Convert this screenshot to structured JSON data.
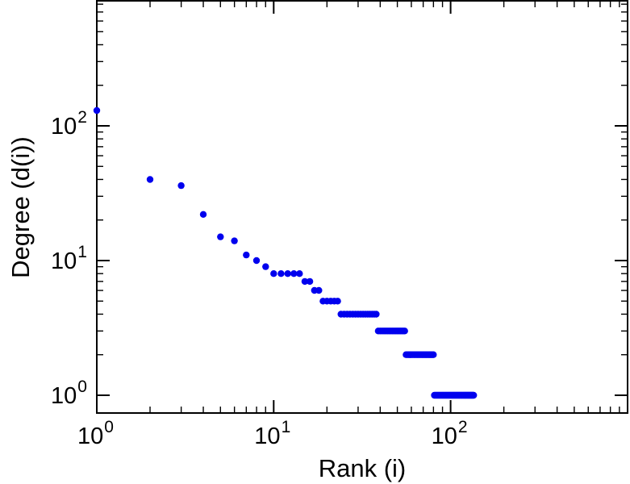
{
  "chart_data": {
    "type": "scatter",
    "title": "",
    "xlabel": "Rank (i)",
    "ylabel": "Degree (d(i))",
    "x_scale": "log",
    "y_scale": "log",
    "xlim": [
      1,
      1000
    ],
    "ylim": [
      1,
      850
    ],
    "grid": false,
    "legend": "none",
    "axis_color": "#000000",
    "background_color": "#ffffff",
    "marker": {
      "shape": "circle",
      "color": "#0000ee",
      "radius": 4.2
    },
    "x_ticks": [
      {
        "value": 1,
        "label": "10",
        "exponent": "0"
      },
      {
        "value": 10,
        "label": "10",
        "exponent": "1"
      },
      {
        "value": 100,
        "label": "10",
        "exponent": "2"
      }
    ],
    "y_ticks": [
      {
        "value": 1,
        "label": "10",
        "exponent": "0"
      },
      {
        "value": 10,
        "label": "10",
        "exponent": "1"
      },
      {
        "value": 100,
        "label": "10",
        "exponent": "2"
      }
    ],
    "points": [
      [
        1,
        130
      ],
      [
        2,
        40
      ],
      [
        3,
        36
      ],
      [
        4,
        22
      ],
      [
        5,
        15
      ],
      [
        6,
        14
      ],
      [
        7,
        11
      ],
      [
        8,
        10
      ],
      [
        9,
        9
      ],
      [
        10,
        8
      ],
      [
        11,
        8
      ],
      [
        12,
        8
      ],
      [
        13,
        8
      ],
      [
        14,
        8
      ],
      [
        15,
        7
      ],
      [
        16,
        7
      ],
      [
        17,
        6
      ],
      [
        18,
        6
      ],
      [
        19,
        5
      ],
      [
        20,
        5
      ],
      [
        21,
        5
      ],
      [
        22,
        5
      ],
      [
        23,
        5
      ],
      [
        24,
        4
      ],
      [
        25,
        4
      ],
      [
        26,
        4
      ],
      [
        27,
        4
      ],
      [
        28,
        4
      ],
      [
        29,
        4
      ],
      [
        30,
        4
      ],
      [
        31,
        4
      ],
      [
        32,
        4
      ],
      [
        33,
        4
      ],
      [
        34,
        4
      ],
      [
        35,
        4
      ],
      [
        36,
        4
      ],
      [
        37,
        4
      ],
      [
        38,
        4
      ],
      [
        39,
        3
      ],
      [
        40,
        3
      ],
      [
        41,
        3
      ],
      [
        42,
        3
      ],
      [
        43,
        3
      ],
      [
        44,
        3
      ],
      [
        45,
        3
      ],
      [
        46,
        3
      ],
      [
        47,
        3
      ],
      [
        48,
        3
      ],
      [
        49,
        3
      ],
      [
        50,
        3
      ],
      [
        51,
        3
      ],
      [
        52,
        3
      ],
      [
        53,
        3
      ],
      [
        54,
        3
      ],
      [
        55,
        3
      ],
      [
        56,
        2
      ],
      [
        57,
        2
      ],
      [
        58,
        2
      ],
      [
        59,
        2
      ],
      [
        60,
        2
      ],
      [
        61,
        2
      ],
      [
        62,
        2
      ],
      [
        63,
        2
      ],
      [
        64,
        2
      ],
      [
        65,
        2
      ],
      [
        66,
        2
      ],
      [
        67,
        2
      ],
      [
        68,
        2
      ],
      [
        69,
        2
      ],
      [
        70,
        2
      ],
      [
        71,
        2
      ],
      [
        72,
        2
      ],
      [
        73,
        2
      ],
      [
        74,
        2
      ],
      [
        75,
        2
      ],
      [
        76,
        2
      ],
      [
        77,
        2
      ],
      [
        78,
        2
      ],
      [
        79,
        2
      ],
      [
        80,
        2
      ],
      [
        81,
        1
      ],
      [
        82,
        1
      ],
      [
        83,
        1
      ],
      [
        84,
        1
      ],
      [
        85,
        1
      ],
      [
        86,
        1
      ],
      [
        87,
        1
      ],
      [
        88,
        1
      ],
      [
        89,
        1
      ],
      [
        90,
        1
      ],
      [
        91,
        1
      ],
      [
        92,
        1
      ],
      [
        93,
        1
      ],
      [
        94,
        1
      ],
      [
        95,
        1
      ],
      [
        96,
        1
      ],
      [
        97,
        1
      ],
      [
        98,
        1
      ],
      [
        99,
        1
      ],
      [
        100,
        1
      ],
      [
        101,
        1
      ],
      [
        102,
        1
      ],
      [
        103,
        1
      ],
      [
        104,
        1
      ],
      [
        105,
        1
      ],
      [
        106,
        1
      ],
      [
        107,
        1
      ],
      [
        108,
        1
      ],
      [
        109,
        1
      ],
      [
        110,
        1
      ],
      [
        111,
        1
      ],
      [
        112,
        1
      ],
      [
        113,
        1
      ],
      [
        114,
        1
      ],
      [
        115,
        1
      ],
      [
        116,
        1
      ],
      [
        117,
        1
      ],
      [
        118,
        1
      ],
      [
        119,
        1
      ],
      [
        120,
        1
      ],
      [
        121,
        1
      ],
      [
        122,
        1
      ],
      [
        123,
        1
      ],
      [
        124,
        1
      ],
      [
        125,
        1
      ],
      [
        126,
        1
      ],
      [
        127,
        1
      ],
      [
        128,
        1
      ],
      [
        129,
        1
      ],
      [
        130,
        1
      ],
      [
        131,
        1
      ],
      [
        132,
        1
      ],
      [
        133,
        1
      ],
      [
        134,
        1
      ],
      [
        135,
        1
      ]
    ]
  }
}
